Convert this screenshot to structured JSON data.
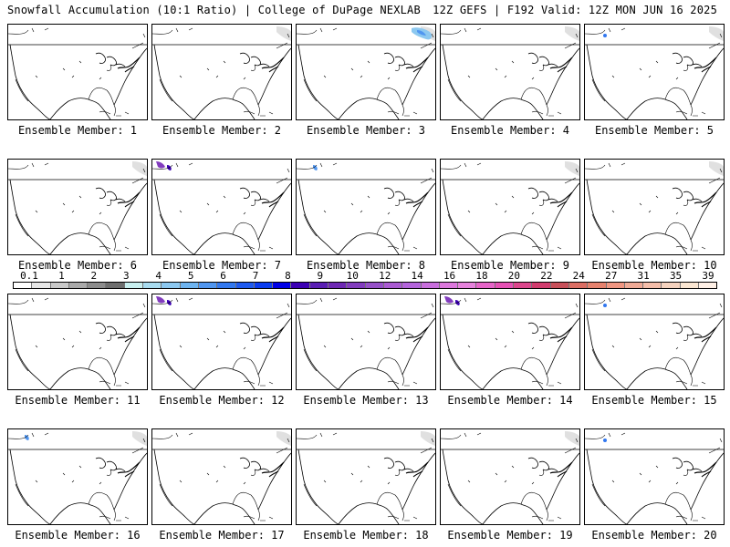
{
  "header": {
    "left": "Snowfall Accumulation (10:1 Ratio) | College of DuPage NEXLAB",
    "right": "12Z GEFS | F192 Valid: 12Z MON JUN 16 2025"
  },
  "panels": [
    {
      "label": "Ensemble Member: 1",
      "features": []
    },
    {
      "label": "Ensemble Member: 2",
      "features": [
        "gray-ne"
      ]
    },
    {
      "label": "Ensemble Member: 3",
      "features": [
        "gray-ne",
        "blue-ne"
      ]
    },
    {
      "label": "Ensemble Member: 4",
      "features": [
        "gray-ne"
      ]
    },
    {
      "label": "Ensemble Member: 5",
      "features": [
        "gray-ne",
        "blue-dot"
      ]
    },
    {
      "label": "Ensemble Member: 6",
      "features": [
        "gray-ne"
      ]
    },
    {
      "label": "Ensemble Member: 7",
      "features": [
        "purple-nw"
      ]
    },
    {
      "label": "Ensemble Member: 8",
      "features": [
        "blue-nw"
      ]
    },
    {
      "label": "Ensemble Member: 9",
      "features": [
        "gray-ne"
      ]
    },
    {
      "label": "Ensemble Member: 10",
      "features": [
        "gray-ne"
      ]
    },
    {
      "label": "Ensemble Member: 11",
      "features": []
    },
    {
      "label": "Ensemble Member: 12",
      "features": [
        "purple-nw"
      ]
    },
    {
      "label": "Ensemble Member: 13",
      "features": []
    },
    {
      "label": "Ensemble Member: 14",
      "features": [
        "purple-nw"
      ]
    },
    {
      "label": "Ensemble Member: 15",
      "features": [
        "blue-dot"
      ]
    },
    {
      "label": "Ensemble Member: 16",
      "features": [
        "gray-ne",
        "blue-nw"
      ]
    },
    {
      "label": "Ensemble Member: 17",
      "features": [
        "gray-ne"
      ]
    },
    {
      "label": "Ensemble Member: 18",
      "features": [
        "gray-ne"
      ]
    },
    {
      "label": "Ensemble Member: 19",
      "features": [
        "gray-ne"
      ]
    },
    {
      "label": "Ensemble Member: 20",
      "features": [
        "blue-dot"
      ]
    }
  ],
  "legend": {
    "ticks": [
      "0.1",
      "1",
      "2",
      "3",
      "4",
      "5",
      "6",
      "7",
      "8",
      "9",
      "10",
      "12",
      "14",
      "16",
      "18",
      "20",
      "22",
      "24",
      "27",
      "31",
      "35",
      "39"
    ],
    "colors": [
      "#ffffff",
      "#e6e6e6",
      "#c8c8c8",
      "#aaaaaa",
      "#8c8c8c",
      "#6e6e6e",
      "#c8f0f0",
      "#a8dcf0",
      "#8cc8f0",
      "#6eb4f0",
      "#5096f0",
      "#3278f0",
      "#1e5af0",
      "#0a3cf0",
      "#0000e6",
      "#3c00b4",
      "#5a1eb4",
      "#6e28b4",
      "#823cbe",
      "#9650c8",
      "#aa5ad2",
      "#b464dc",
      "#c86edc",
      "#dc78dc",
      "#e682dc",
      "#e664c8",
      "#e650b4",
      "#dc468c",
      "#d23c6e",
      "#c8505a",
      "#dc6e64",
      "#e6826e",
      "#f09682",
      "#f0aa96",
      "#f5beaa",
      "#f5d2be",
      "#fae6d2",
      "#fff0e6"
    ]
  }
}
